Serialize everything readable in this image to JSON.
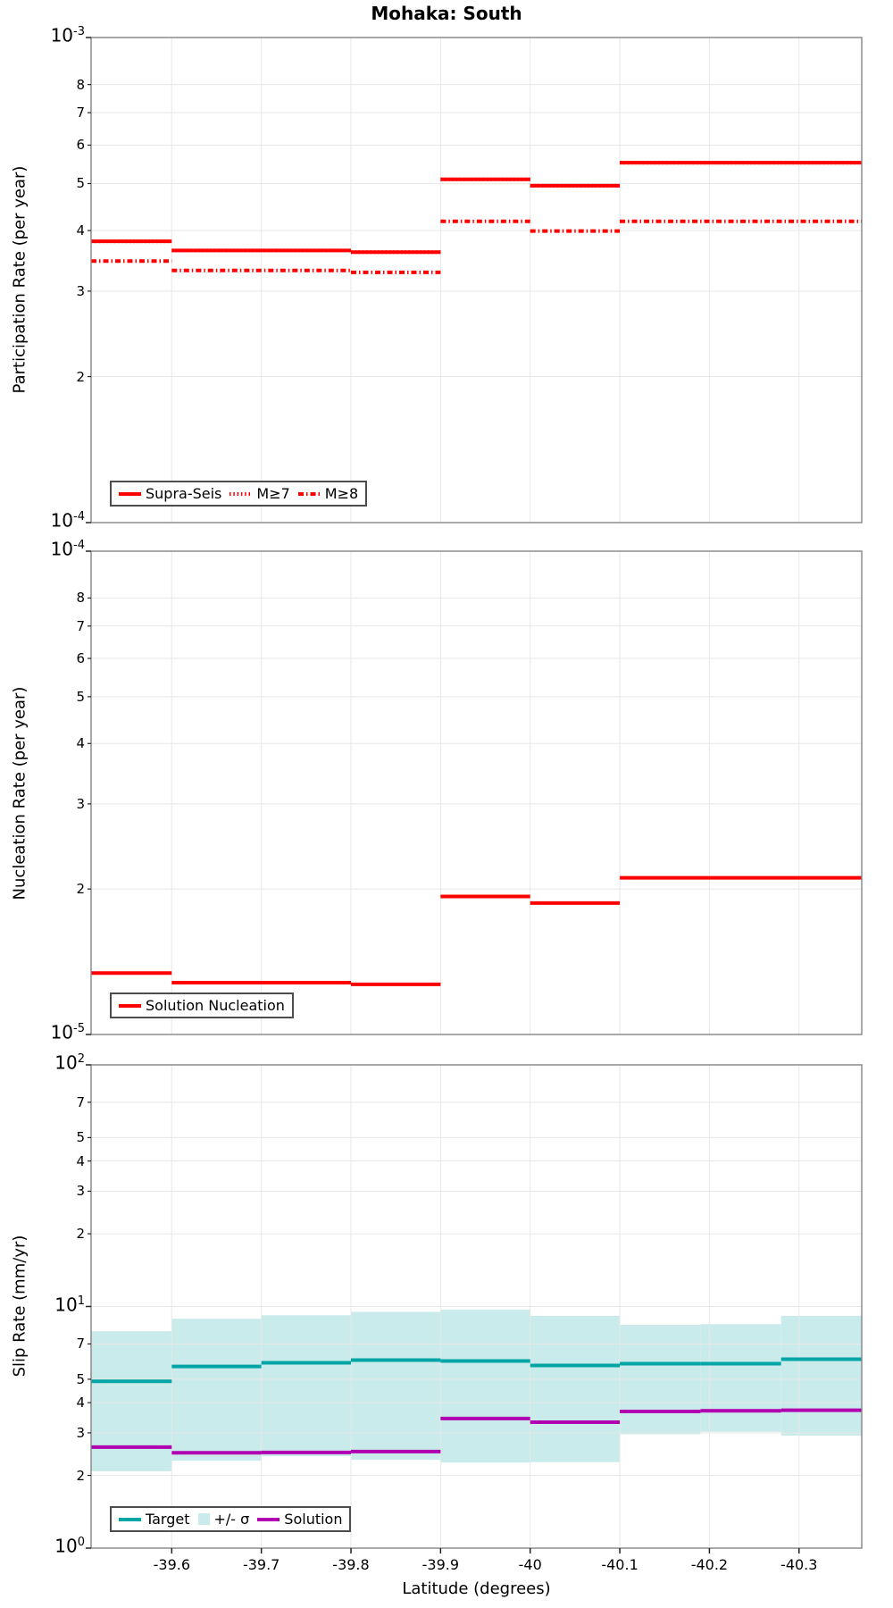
{
  "title": "Mohaka: South",
  "xlabel": "Latitude (degrees)",
  "x_axis": {
    "range": [
      -39.51,
      -40.37
    ],
    "ticks": [
      -39.6,
      -39.7,
      -39.8,
      -39.9,
      -40,
      -40.1,
      -40.2,
      -40.3
    ],
    "tick_labels": [
      "-39.6",
      "-39.7",
      "-39.8",
      "-39.9",
      "-40",
      "-40.1",
      "-40.2",
      "-40.3"
    ]
  },
  "colors": {
    "series_red": "#ff0000",
    "target_teal": "#00a5a5",
    "sigma_band": "#caebeb",
    "solution_purple": "#b000b0",
    "grid": "#e7e7e7",
    "spine": "#848484",
    "tick": "#222222"
  },
  "chart_data": [
    {
      "type": "step-line",
      "panel": "participation",
      "ylabel": "Participation Rate (per year)",
      "yscale": "log",
      "ylim": [
        0.0001,
        0.001
      ],
      "y_major_ticks": [
        {
          "exp": "-3",
          "value": 0.001
        },
        {
          "exp": "-4",
          "value": 0.0001
        }
      ],
      "y_minor_ticks": [
        {
          "label": "8",
          "value": 0.0008
        },
        {
          "label": "7",
          "value": 0.0007
        },
        {
          "label": "6",
          "value": 0.0006
        },
        {
          "label": "5",
          "value": 0.0005
        },
        {
          "label": "4",
          "value": 0.0004
        },
        {
          "label": "3",
          "value": 0.0003
        },
        {
          "label": "2",
          "value": 0.0002
        }
      ],
      "x_edges": [
        -39.51,
        -39.6,
        -39.8,
        -39.9,
        -40.0,
        -40.1,
        -40.37
      ],
      "series": [
        {
          "name": "Supra-Seis",
          "style": "solid",
          "color_key": "series_red",
          "values": [
            0.00038,
            0.000364,
            0.000361,
            0.00051,
            0.000495,
            0.000552
          ]
        },
        {
          "name": "M≥7",
          "style": "dotted",
          "color_key": "series_red",
          "values": [
            0.00038,
            0.000364,
            0.000361,
            0.00051,
            0.000495,
            0.000552
          ]
        },
        {
          "name": "M≥8",
          "style": "dashdot",
          "color_key": "series_red",
          "values": [
            0.000346,
            0.000331,
            0.000328,
            0.000418,
            0.000399,
            0.000418
          ]
        }
      ]
    },
    {
      "type": "step-line",
      "panel": "nucleation",
      "ylabel": "Nucleation Rate (per year)",
      "yscale": "log",
      "ylim": [
        1e-05,
        0.0001
      ],
      "y_major_ticks": [
        {
          "exp": "-4",
          "value": 0.0001
        },
        {
          "exp": "-5",
          "value": 1e-05
        }
      ],
      "y_minor_ticks": [
        {
          "label": "8",
          "value": 8e-05
        },
        {
          "label": "7",
          "value": 7e-05
        },
        {
          "label": "6",
          "value": 6e-05
        },
        {
          "label": "5",
          "value": 5e-05
        },
        {
          "label": "4",
          "value": 4e-05
        },
        {
          "label": "3",
          "value": 3e-05
        },
        {
          "label": "2",
          "value": 2e-05
        }
      ],
      "x_edges": [
        -39.51,
        -39.6,
        -39.8,
        -39.9,
        -40.0,
        -40.1,
        -40.37
      ],
      "series": [
        {
          "name": "Solution Nucleation",
          "style": "solid",
          "color_key": "series_red",
          "values": [
            1.34e-05,
            1.28e-05,
            1.27e-05,
            1.93e-05,
            1.87e-05,
            2.11e-05
          ]
        }
      ]
    },
    {
      "type": "step-line",
      "panel": "slip-rate",
      "ylabel": "Slip Rate (mm/yr)",
      "yscale": "log",
      "ylim": [
        1,
        100
      ],
      "y_major_ticks": [
        {
          "exp": "2",
          "value": 100
        },
        {
          "exp": "1",
          "value": 10
        },
        {
          "exp": "0",
          "value": 1
        }
      ],
      "y_minor_ticks": [
        {
          "label": "7",
          "value": 70
        },
        {
          "label": "5",
          "value": 50
        },
        {
          "label": "4",
          "value": 40
        },
        {
          "label": "3",
          "value": 30
        },
        {
          "label": "2",
          "value": 20
        },
        {
          "label": "7",
          "value": 7
        },
        {
          "label": "5",
          "value": 5
        },
        {
          "label": "4",
          "value": 4
        },
        {
          "label": "3",
          "value": 3
        },
        {
          "label": "2",
          "value": 2
        }
      ],
      "x_edges": [
        -39.51,
        -39.6,
        -39.7,
        -39.8,
        -39.9,
        -40.0,
        -40.1,
        -40.19,
        -40.28,
        -40.37
      ],
      "band": {
        "name": "+/- σ",
        "color_key": "sigma_band",
        "upper": [
          7.9,
          8.9,
          9.2,
          9.5,
          9.7,
          9.15,
          8.4,
          8.45,
          9.15
        ],
        "lower": [
          2.08,
          2.3,
          2.4,
          2.32,
          2.26,
          2.27,
          2.96,
          3.03,
          2.92
        ]
      },
      "series": [
        {
          "name": "Target",
          "style": "solid",
          "color_key": "target_teal",
          "values": [
            4.9,
            5.65,
            5.85,
            6.0,
            5.95,
            5.7,
            5.8,
            5.8,
            6.05
          ]
        },
        {
          "name": "Solution",
          "style": "solid",
          "color_key": "solution_purple",
          "values": [
            2.62,
            2.48,
            2.49,
            2.51,
            3.44,
            3.32,
            3.68,
            3.7,
            3.72
          ]
        }
      ]
    }
  ]
}
